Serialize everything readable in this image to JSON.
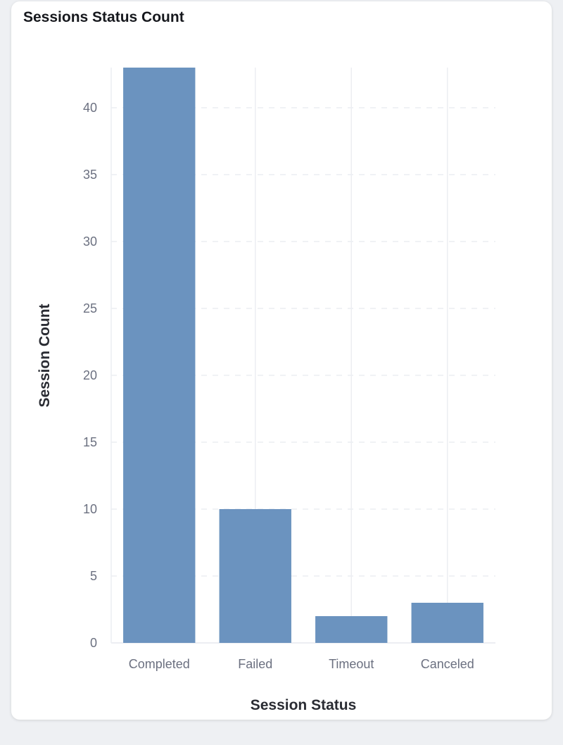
{
  "chart_data": {
    "type": "bar",
    "title": "Sessions Status Count",
    "xlabel": "Session Status",
    "ylabel": "Session Count",
    "categories": [
      "Completed",
      "Failed",
      "Timeout",
      "Canceled"
    ],
    "values": [
      43,
      10,
      2,
      3
    ],
    "ylim": [
      0,
      43
    ],
    "yticks": [
      0,
      5,
      10,
      15,
      20,
      25,
      30,
      35,
      40
    ],
    "grid": true,
    "bar_color": "#6b93bf"
  }
}
